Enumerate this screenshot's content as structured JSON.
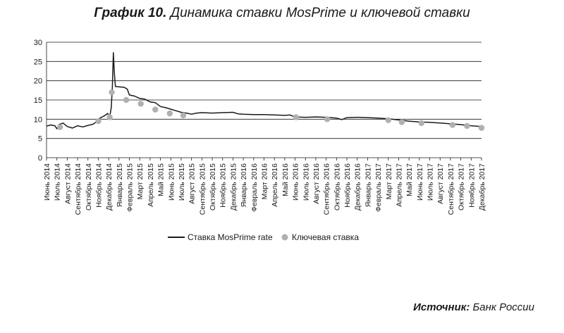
{
  "figure": {
    "title_number": "График 10.",
    "title_text": "Динамика ставки MosPrime и ключевой ставки",
    "source_label": "Источник:",
    "source_text": "Банк России"
  },
  "chart_data": {
    "type": "line",
    "ylim": [
      0,
      30
    ],
    "yticks": [
      0,
      5,
      10,
      15,
      20,
      25,
      30
    ],
    "grid": true,
    "legend_position": "bottom-center",
    "categories": [
      "Июнь 2014",
      "Июль 2014",
      "Август 2014",
      "Сентябрь 2014",
      "Октябрь 2014",
      "Ноябрь 2014",
      "Декабрь 2014",
      "Январь 2015",
      "Февраль 2015",
      "Март 2015",
      "Апрель 2015",
      "Май 2015",
      "Июнь 2015",
      "Июль 2015",
      "Август 2015",
      "Сентябрь 2015",
      "Октябрь 2015",
      "Ноябрь 2015",
      "Декабрь 2015",
      "Январь 2016",
      "Февраль 2016",
      "Март 2016",
      "Апрель 2016",
      "Май 2016",
      "Июнь 2016",
      "Июль 2016",
      "Август 2016",
      "Сентябрь 2016",
      "Октябрь 2016",
      "Ноябрь 2016",
      "Декабрь 2016",
      "Январь 2017",
      "Февраль 2017",
      "Март 2017",
      "Апрель 2017",
      "Май 2017",
      "Июнь 2017",
      "Июль 2017",
      "Август 2017",
      "Сентябрь 2017",
      "Октябрь 2017",
      "Ноябрь 2017",
      "Декабрь 2017"
    ],
    "series": [
      {
        "name": "Ставка MosPrime rate",
        "kind": "line",
        "color": "#1a1a1a",
        "points": [
          [
            0,
            8.2
          ],
          [
            0.4,
            8.5
          ],
          [
            0.8,
            8.3
          ],
          [
            1.0,
            7.5
          ],
          [
            1.2,
            8.6
          ],
          [
            1.6,
            9.0
          ],
          [
            2.0,
            8.1
          ],
          [
            2.5,
            7.7
          ],
          [
            3.0,
            8.3
          ],
          [
            3.5,
            8.0
          ],
          [
            4.0,
            8.4
          ],
          [
            4.5,
            8.7
          ],
          [
            4.8,
            9.3
          ],
          [
            5.0,
            10.0
          ],
          [
            5.3,
            10.5
          ],
          [
            5.6,
            10.9
          ],
          [
            5.9,
            11.5
          ],
          [
            6.1,
            10.6
          ],
          [
            6.25,
            13.0
          ],
          [
            6.35,
            18.0
          ],
          [
            6.45,
            27.3
          ],
          [
            6.55,
            22.0
          ],
          [
            6.65,
            18.5
          ],
          [
            7.0,
            18.4
          ],
          [
            7.5,
            18.3
          ],
          [
            7.8,
            17.8
          ],
          [
            8.0,
            16.3
          ],
          [
            8.5,
            16.0
          ],
          [
            9.0,
            15.4
          ],
          [
            9.5,
            15.2
          ],
          [
            10.0,
            14.5
          ],
          [
            10.5,
            14.3
          ],
          [
            11.0,
            13.3
          ],
          [
            11.5,
            13.0
          ],
          [
            12.0,
            12.6
          ],
          [
            12.5,
            12.2
          ],
          [
            13.0,
            11.8
          ],
          [
            13.5,
            11.6
          ],
          [
            14.0,
            11.3
          ],
          [
            14.5,
            11.6
          ],
          [
            15.0,
            11.7
          ],
          [
            16.0,
            11.6
          ],
          [
            17.0,
            11.7
          ],
          [
            18.0,
            11.8
          ],
          [
            18.5,
            11.4
          ],
          [
            19.0,
            11.3
          ],
          [
            20.0,
            11.2
          ],
          [
            21.0,
            11.2
          ],
          [
            22.0,
            11.1
          ],
          [
            23.0,
            11.0
          ],
          [
            23.5,
            11.1
          ],
          [
            24.0,
            10.6
          ],
          [
            25.0,
            10.5
          ],
          [
            26.0,
            10.6
          ],
          [
            27.0,
            10.5
          ],
          [
            28.0,
            10.3
          ],
          [
            28.5,
            9.9
          ],
          [
            29.0,
            10.4
          ],
          [
            30.0,
            10.5
          ],
          [
            31.0,
            10.4
          ],
          [
            32.0,
            10.3
          ],
          [
            33.0,
            10.1
          ],
          [
            34.0,
            9.8
          ],
          [
            35.0,
            9.5
          ],
          [
            36.0,
            9.3
          ],
          [
            37.0,
            9.2
          ],
          [
            38.0,
            9.0
          ],
          [
            39.0,
            8.8
          ],
          [
            40.0,
            8.6
          ],
          [
            41.0,
            8.3
          ],
          [
            42.0,
            8.1
          ]
        ]
      },
      {
        "name": "Ключевая ставка",
        "kind": "marker",
        "color": "#b0b0b0",
        "points": [
          [
            1.3,
            7.95
          ],
          [
            5.0,
            9.5
          ],
          [
            6.1,
            10.5
          ],
          [
            6.3,
            17.0
          ],
          [
            7.7,
            15.0
          ],
          [
            9.1,
            14.0
          ],
          [
            10.5,
            12.5
          ],
          [
            11.9,
            11.5
          ],
          [
            13.2,
            11.0
          ],
          [
            24.1,
            10.5
          ],
          [
            27.1,
            10.0
          ],
          [
            33.0,
            9.75
          ],
          [
            34.3,
            9.25
          ],
          [
            36.2,
            9.0
          ],
          [
            39.2,
            8.5
          ],
          [
            40.6,
            8.25
          ],
          [
            42.0,
            7.75
          ]
        ]
      }
    ]
  }
}
